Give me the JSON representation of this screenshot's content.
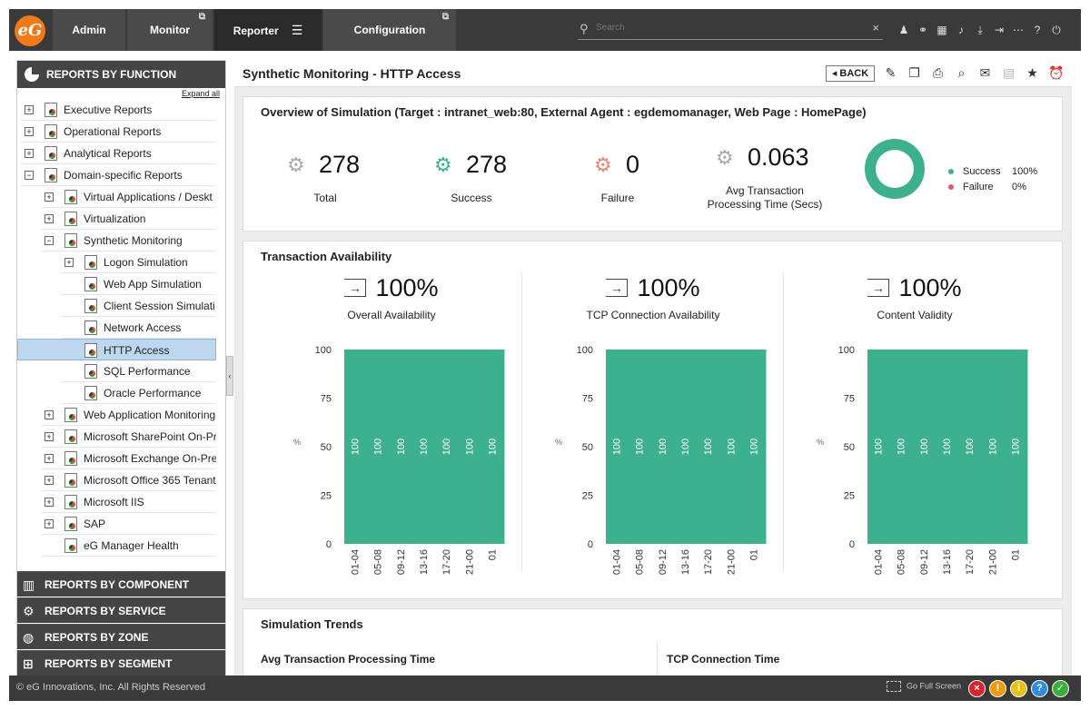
{
  "nav": {
    "logo": "eG",
    "tabs": [
      {
        "label": "Admin"
      },
      {
        "label": "Monitor"
      },
      {
        "label": "Reporter"
      },
      {
        "label": "Configuration"
      }
    ],
    "search_placeholder": "Search",
    "icons": [
      "user-icon",
      "link-icon",
      "building-icon",
      "bell-icon",
      "download-icon",
      "logout-icon",
      "more-icon",
      "help-icon",
      "power-icon"
    ]
  },
  "sidebar": {
    "header": "REPORTS BY FUNCTION",
    "expand_all": "Expand all",
    "tree": [
      {
        "label": "Executive Reports"
      },
      {
        "label": "Operational Reports"
      },
      {
        "label": "Analytical Reports"
      },
      {
        "label": "Domain-specific Reports"
      },
      {
        "label": "Virtual Applications / Deskt"
      },
      {
        "label": "Virtualization"
      },
      {
        "label": "Synthetic Monitoring"
      },
      {
        "label": "Logon Simulation"
      },
      {
        "label": "Web App Simulation"
      },
      {
        "label": "Client Session Simulati"
      },
      {
        "label": "Network Access"
      },
      {
        "label": "HTTP Access"
      },
      {
        "label": "SQL Performance"
      },
      {
        "label": "Oracle Performance"
      },
      {
        "label": "Web Application Monitoring"
      },
      {
        "label": "Microsoft SharePoint On-Pr"
      },
      {
        "label": "Microsoft Exchange On-Pre"
      },
      {
        "label": "Microsoft Office 365 Tenant"
      },
      {
        "label": "Microsoft IIS"
      },
      {
        "label": "SAP"
      },
      {
        "label": "eG Manager Health"
      }
    ],
    "footer_sections": [
      {
        "label": "REPORTS BY COMPONENT"
      },
      {
        "label": "REPORTS BY SERVICE"
      },
      {
        "label": "REPORTS BY ZONE"
      },
      {
        "label": "REPORTS BY SEGMENT"
      }
    ]
  },
  "main": {
    "title": "Synthetic Monitoring - HTTP Access",
    "back_label": "BACK",
    "overview": {
      "title": "Overview of Simulation (Target : intranet_web:80, External Agent : egdemomanager, Web Page : HomePage)",
      "stats": [
        {
          "value": "278",
          "label": "Total"
        },
        {
          "value": "278",
          "label": "Success"
        },
        {
          "value": "0",
          "label": "Failure"
        },
        {
          "value": "0.063",
          "label": "Avg Transaction Processing Time (Secs)"
        }
      ],
      "legend": [
        {
          "name": "Success",
          "value": "100%",
          "color": "#3db08e"
        },
        {
          "name": "Failure",
          "value": "0%",
          "color": "#e8566a"
        }
      ]
    },
    "availability": {
      "title": "Transaction Availability",
      "panels": [
        {
          "percent": "100%",
          "label": "Overall Availability"
        },
        {
          "percent": "100%",
          "label": "TCP Connection Availability"
        },
        {
          "percent": "100%",
          "label": "Content Validity"
        }
      ]
    },
    "trends": {
      "title": "Simulation Trends",
      "sub_left": "Avg Transaction Processing Time",
      "sub_right": "TCP Connection Time"
    }
  },
  "chart_data": [
    {
      "type": "bar",
      "categories": [
        "01-04",
        "05-08",
        "09-12",
        "13-16",
        "17-20",
        "21-00",
        "01"
      ],
      "values": [
        100,
        100,
        100,
        100,
        100,
        100,
        100
      ],
      "ylabel": "%",
      "ylim": [
        0,
        100
      ],
      "yticks": [
        0,
        25,
        50,
        75,
        100
      ],
      "color": "#3db08e"
    },
    {
      "type": "bar",
      "categories": [
        "01-04",
        "05-08",
        "09-12",
        "13-16",
        "17-20",
        "21-00",
        "01"
      ],
      "values": [
        100,
        100,
        100,
        100,
        100,
        100,
        100
      ],
      "ylabel": "%",
      "ylim": [
        0,
        100
      ],
      "yticks": [
        0,
        25,
        50,
        75,
        100
      ],
      "color": "#3db08e"
    },
    {
      "type": "bar",
      "categories": [
        "01-04",
        "05-08",
        "09-12",
        "13-16",
        "17-20",
        "21-00",
        "01"
      ],
      "values": [
        100,
        100,
        100,
        100,
        100,
        100,
        100
      ],
      "ylabel": "%",
      "ylim": [
        0,
        100
      ],
      "yticks": [
        0,
        25,
        50,
        75,
        100
      ],
      "color": "#3db08e"
    }
  ],
  "footer": {
    "copyright": "© eG Innovations, Inc. All Rights Reserved",
    "full_screen": "Go Full Screen",
    "severity": [
      {
        "symbol": "×",
        "color": "#d9232e"
      },
      {
        "symbol": "!",
        "color": "#f29b11"
      },
      {
        "symbol": "i",
        "color": "#e8c21a"
      },
      {
        "symbol": "?",
        "color": "#2e8fd8"
      },
      {
        "symbol": "✓",
        "color": "#3cae3c"
      }
    ]
  }
}
